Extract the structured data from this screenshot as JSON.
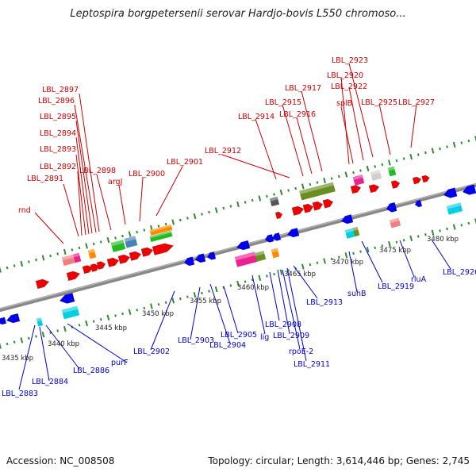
{
  "title": "Leptospira borgpetersenii serovar Hardjo-bovis L550 chromoso...",
  "footer": {
    "accession": "Accession: NC_008508",
    "stats": "Topology: circular; Length: 3,614,446 bp; Genes: 2,745"
  },
  "colors": {
    "forward_label": "#cc0000",
    "reverse_label": "#0000cc",
    "forward_gene": "#ee0000",
    "reverse_gene": "#0000ee",
    "backbone": "#888888",
    "tick": "#2e8b2e",
    "rna_pink": "#ee1f8f",
    "rna_salmon": "#f08080",
    "rna_cyan": "#00cfe0",
    "rna_orange": "#ff8c00",
    "rna_olive": "#6b8e23",
    "rna_green": "#22bb22",
    "rna_steel": "#4682b4",
    "rna_grey": "#555555"
  },
  "scale_labels": [
    "3435 kbp",
    "3440 kbp",
    "3445 kbp",
    "3450 kbp",
    "3455 kbp",
    "3460 kbp",
    "3465 kbp",
    "3470 kbp",
    "3475 kbp",
    "3480 kbp"
  ],
  "forward_labels": [
    "rnd",
    "LBL_2891",
    "LBL_2892",
    "LBL_2893",
    "LBL_2894",
    "LBL_2895",
    "LBL_2896",
    "LBL_2897",
    "LBL_2898",
    "argJ",
    "LBL_2900",
    "LBL_2901",
    "LBL_2912",
    "LBL_2914",
    "LBL_2915",
    "LBL_2916",
    "LBL_2917",
    "LBL_2920",
    "splB",
    "LBL_2922",
    "LBL_2923",
    "LBL_2925",
    "LBL_2927"
  ],
  "reverse_labels": [
    "LBL_2883",
    "LBL_2884",
    "LBL_2886",
    "purF",
    "LBL_2902",
    "LBL_2903",
    "LBL_2904",
    "LBL_2905",
    "lig",
    "LBL_2908",
    "LBL_2909",
    "rpoE-2",
    "LBL_2911",
    "LBL_2913",
    "suhB",
    "LBL_2919",
    "rluA",
    "LBL_2926"
  ]
}
